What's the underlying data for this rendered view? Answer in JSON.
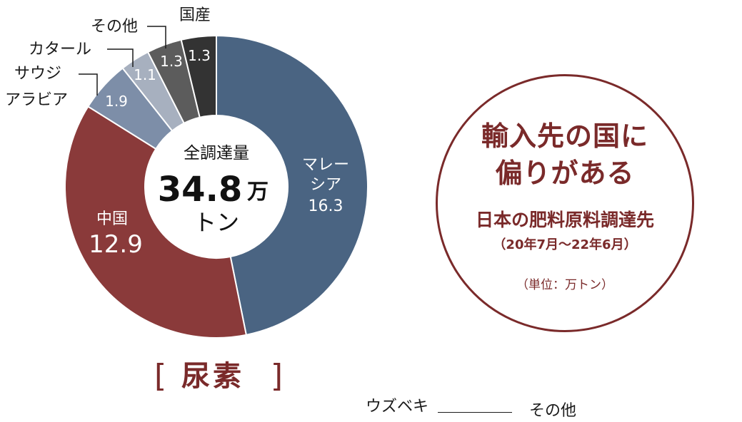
{
  "chart_data": {
    "type": "pie",
    "categories": [
      "マレーシア",
      "中国",
      "サウジアラビア",
      "カタール",
      "その他",
      "国産"
    ],
    "values": [
      16.3,
      12.9,
      1.9,
      1.1,
      1.3,
      1.3
    ],
    "series_colors": [
      "#4a6482",
      "#8a3a3a",
      "#7d8ea8",
      "#a7b0bf",
      "#5c5c5c",
      "#333333"
    ],
    "value_labels": [
      "16.3",
      "12.9",
      "1.9",
      "1.1",
      "1.3",
      "1.3"
    ],
    "inner_labels": [
      [
        "マレー",
        "シア",
        "16.3"
      ],
      [
        "中国",
        "12.9"
      ]
    ],
    "outer_labels": [
      "サウジ",
      "アラビア",
      "カタール",
      "その他",
      "国産"
    ],
    "center": {
      "label": "全調達量",
      "value": "34.8",
      "unit1": "万",
      "unit2": "トン"
    },
    "title": "尿素",
    "total": 34.8
  },
  "badge": {
    "headline_line1": "輸入先の国に",
    "headline_line2": "偏りがある",
    "subtitle": "日本の肥料原料調達先",
    "period": "（20年7月～22年6月）",
    "unit": "（単位：万トン）",
    "border_color": "#7a2a2a"
  },
  "next_chart": {
    "label_left": "ウズベキ",
    "label_right": "その他"
  }
}
